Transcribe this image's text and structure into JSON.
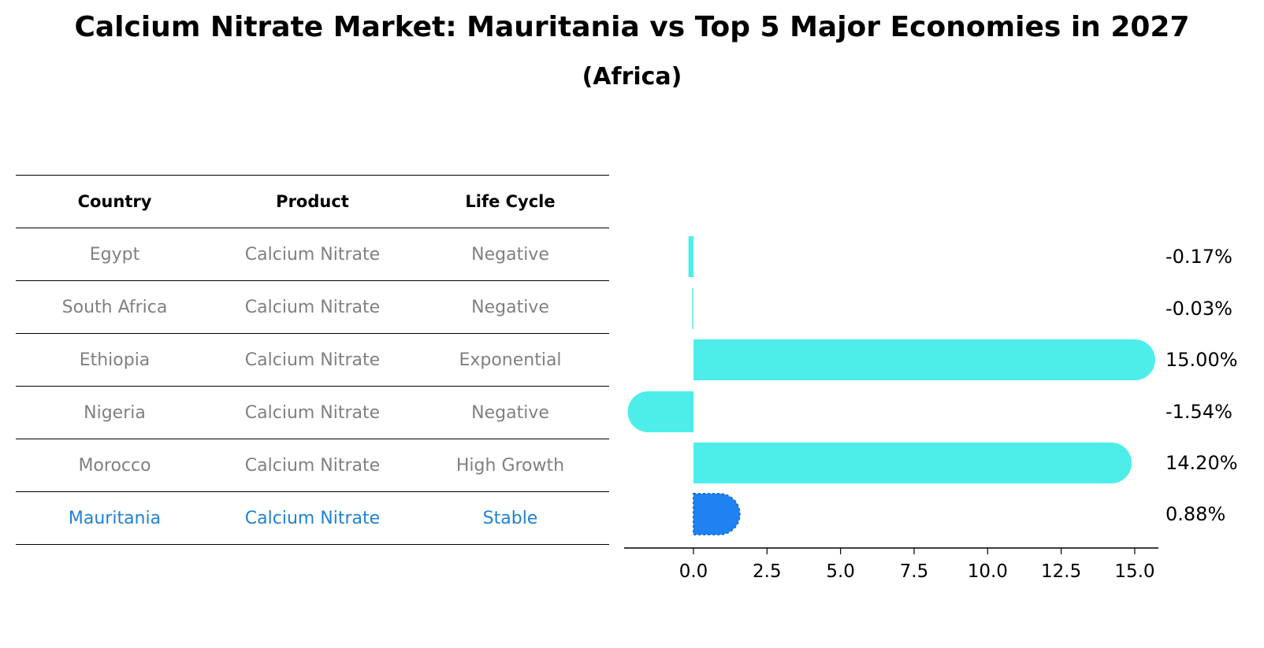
{
  "title": "Calcium Nitrate Market: Mauritania vs Top 5 Major Economies in 2027",
  "subtitle": "(Africa)",
  "table": {
    "headers": [
      "Country",
      "Product",
      "Life Cycle"
    ],
    "rows": [
      [
        "Egypt",
        "Calcium Nitrate",
        "Negative"
      ],
      [
        "South Africa",
        "Calcium Nitrate",
        "Negative"
      ],
      [
        "Ethiopia",
        "Calcium Nitrate",
        "Exponential"
      ],
      [
        "Nigeria",
        "Calcium Nitrate",
        "Negative"
      ],
      [
        "Morocco",
        "Calcium Nitrate",
        "High Growth"
      ],
      [
        "Mauritania",
        "Calcium Nitrate",
        "Stable"
      ]
    ]
  },
  "chart_data": {
    "type": "bar",
    "orientation": "horizontal",
    "categories": [
      "Egypt",
      "South Africa",
      "Ethiopia",
      "Nigeria",
      "Morocco",
      "Mauritania"
    ],
    "values": [
      -0.17,
      -0.03,
      15.0,
      -1.54,
      14.2,
      0.88
    ],
    "labels": [
      "-0.17%",
      "-0.03%",
      "15.00%",
      "-1.54%",
      "14.20%",
      "0.88%"
    ],
    "highlight": "Mauritania",
    "xticks": [
      "0.0",
      "2.5",
      "5.0",
      "7.5",
      "10.0",
      "12.5",
      "15.0"
    ],
    "xlim": [
      -2.4,
      15.8
    ],
    "colors": {
      "default": "#4deeea",
      "highlight": "#1f82f2"
    }
  }
}
